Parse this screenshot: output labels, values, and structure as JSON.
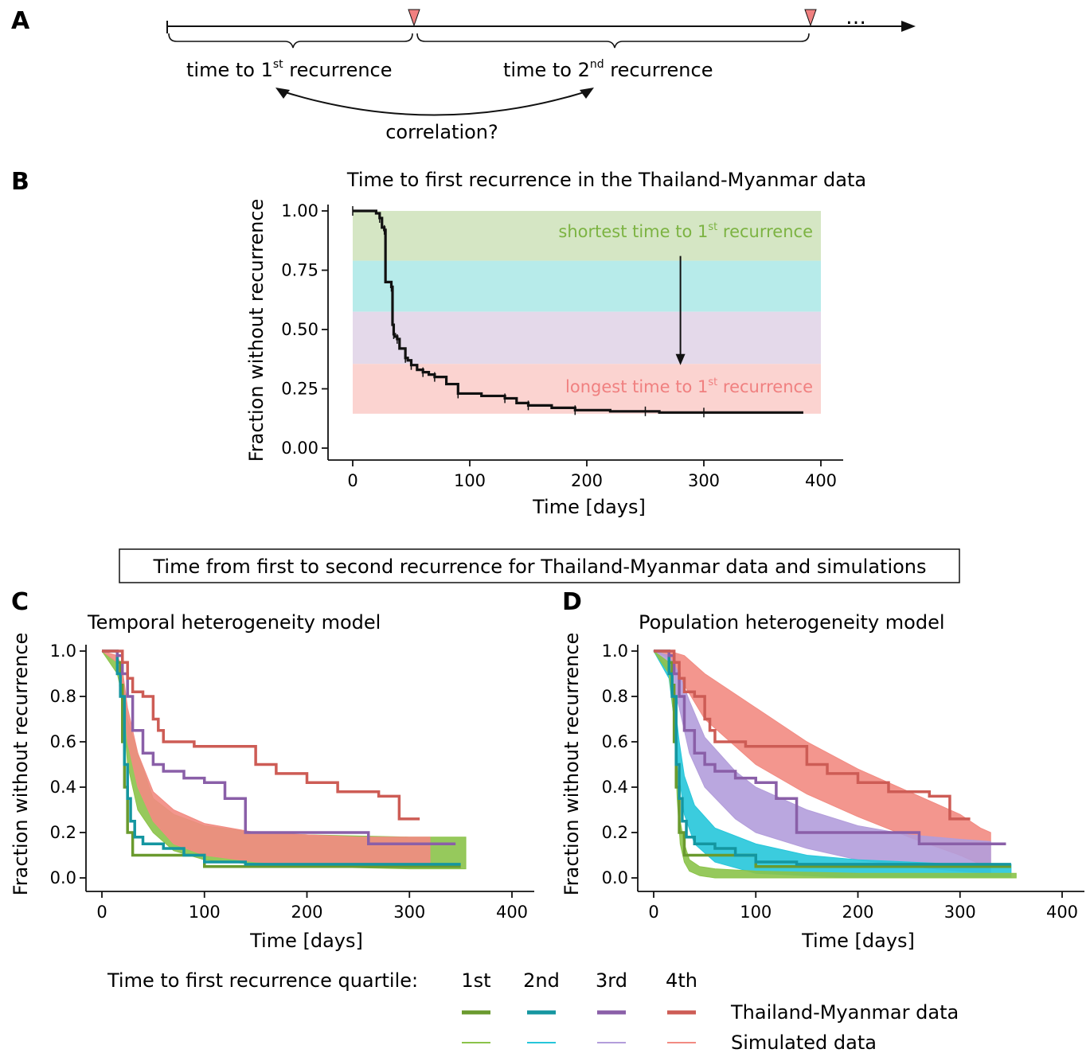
{
  "panel_letters": {
    "a": "A",
    "b": "B",
    "c": "C",
    "d": "D"
  },
  "panel_a": {
    "first_label_pre": "time to 1",
    "first_label_sup": "st",
    "first_label_post": " recurrence",
    "second_label_pre": "time to 2",
    "second_label_sup": "nd",
    "second_label_post": " recurrence",
    "correlation": "correlation?",
    "ellipsis": "…",
    "marker_color": "#f08080"
  },
  "section_title": "Time from first to second recurrence for Thailand-Myanmar data and simulations",
  "legend": {
    "quartile_title": "Time to first recurrence quartile:",
    "quartiles": [
      "1st",
      "2nd",
      "3rd",
      "4th"
    ],
    "colors_data": [
      "#6a9a2e",
      "#1496a0",
      "#8a5fa8",
      "#cd5c55"
    ],
    "colors_sim": [
      "#8bc34a",
      "#26c6da",
      "#b39ddb",
      "#f28b82"
    ],
    "data_label": "Thailand-Myanmar data",
    "sim_label": "Simulated data"
  },
  "chart_data": [
    {
      "id": "B",
      "type": "line",
      "title": "Time to first recurrence in the Thailand-Myanmar data",
      "xlabel": "Time [days]",
      "ylabel": "Fraction without recurrence",
      "xlim": [
        0,
        400
      ],
      "ylim": [
        0,
        1
      ],
      "xticks": [
        "0",
        "100",
        "200",
        "300",
        "400"
      ],
      "yticks": [
        "0.00",
        "0.25",
        "0.50",
        "0.75",
        "1.00"
      ],
      "bands": [
        {
          "y0": 0.79,
          "y1": 1.0,
          "color": "#d5e6c4"
        },
        {
          "y0": 0.575,
          "y1": 0.79,
          "color": "#b7ebea"
        },
        {
          "y0": 0.355,
          "y1": 0.575,
          "color": "#e4d9ea"
        },
        {
          "y0": 0.145,
          "y1": 0.355,
          "color": "#fbd3d0"
        }
      ],
      "band_x": [
        0,
        400
      ],
      "annotation_top": {
        "pre": "shortest time to 1",
        "sup": "st",
        "post": " recurrence",
        "color": "#7cb342"
      },
      "annotation_bottom": {
        "pre": "longest time to 1",
        "sup": "st",
        "post": " recurrence",
        "color": "#f08080"
      },
      "arrow": {
        "x": 280,
        "y_from": 0.81,
        "y_to": 0.35
      },
      "series": [
        {
          "color": "#111111",
          "x": [
            0,
            20,
            23,
            25,
            27,
            28,
            33,
            34,
            35,
            36,
            38,
            40,
            45,
            47,
            50,
            55,
            60,
            65,
            70,
            80,
            90,
            110,
            130,
            140,
            150,
            170,
            190,
            220,
            250,
            262,
            300,
            385
          ],
          "y": [
            1.0,
            0.99,
            0.97,
            0.93,
            0.92,
            0.7,
            0.68,
            0.52,
            0.48,
            0.47,
            0.46,
            0.42,
            0.38,
            0.37,
            0.35,
            0.33,
            0.32,
            0.31,
            0.3,
            0.27,
            0.23,
            0.22,
            0.21,
            0.19,
            0.18,
            0.17,
            0.16,
            0.155,
            0.155,
            0.15,
            0.15,
            0.15
          ]
        }
      ]
    },
    {
      "id": "C",
      "type": "line",
      "title": "Temporal heterogeneity model",
      "xlabel": "Time [days]",
      "ylabel": "Fraction without recurrence",
      "xlim": [
        0,
        400
      ],
      "ylim": [
        0,
        1
      ],
      "xticks": [
        "0",
        "100",
        "200",
        "300",
        "400"
      ],
      "yticks": [
        "0.0",
        "0.2",
        "0.4",
        "0.6",
        "0.8",
        "1.0"
      ],
      "series": [
        {
          "name": "1st",
          "kind": "data",
          "x": [
            0,
            15,
            18,
            20,
            22,
            25,
            30,
            40,
            60,
            90,
            100,
            120,
            150,
            200,
            250,
            350
          ],
          "y": [
            1.0,
            0.95,
            0.85,
            0.6,
            0.4,
            0.2,
            0.1,
            0.1,
            0.1,
            0.1,
            0.05,
            0.05,
            0.05,
            0.05,
            0.05,
            0.05
          ]
        },
        {
          "name": "2nd",
          "kind": "data",
          "x": [
            0,
            15,
            18,
            22,
            25,
            28,
            32,
            40,
            60,
            80,
            100,
            140,
            200,
            300,
            350
          ],
          "y": [
            1.0,
            0.9,
            0.8,
            0.5,
            0.35,
            0.25,
            0.18,
            0.15,
            0.13,
            0.1,
            0.07,
            0.06,
            0.06,
            0.06,
            0.06
          ]
        },
        {
          "name": "3rd",
          "kind": "data",
          "x": [
            0,
            15,
            20,
            25,
            30,
            40,
            50,
            60,
            80,
            100,
            120,
            140,
            200,
            260,
            300,
            345
          ],
          "y": [
            1.0,
            0.98,
            0.9,
            0.8,
            0.65,
            0.55,
            0.5,
            0.47,
            0.44,
            0.42,
            0.35,
            0.2,
            0.2,
            0.15,
            0.15,
            0.15
          ]
        },
        {
          "name": "4th",
          "kind": "data",
          "x": [
            0,
            20,
            25,
            30,
            40,
            50,
            55,
            60,
            90,
            120,
            150,
            170,
            200,
            230,
            270,
            290,
            310
          ],
          "y": [
            1.0,
            0.95,
            0.88,
            0.82,
            0.8,
            0.7,
            0.65,
            0.6,
            0.58,
            0.58,
            0.5,
            0.46,
            0.42,
            0.38,
            0.36,
            0.26,
            0.26
          ]
        }
      ],
      "sim_envelopes": [
        {
          "name": "1st",
          "x": [
            0,
            15,
            20,
            25,
            35,
            50,
            70,
            100,
            150,
            200,
            300,
            355
          ],
          "upper": [
            1.0,
            0.95,
            0.9,
            0.7,
            0.55,
            0.35,
            0.28,
            0.23,
            0.2,
            0.19,
            0.18,
            0.18
          ],
          "lower": [
            1.0,
            0.9,
            0.8,
            0.5,
            0.3,
            0.2,
            0.12,
            0.08,
            0.06,
            0.05,
            0.04,
            0.04
          ]
        },
        {
          "name": "4th",
          "x": [
            0,
            15,
            20,
            25,
            35,
            50,
            70,
            100,
            150,
            200,
            250,
            320
          ],
          "upper": [
            1.0,
            0.98,
            0.92,
            0.75,
            0.55,
            0.38,
            0.3,
            0.24,
            0.2,
            0.19,
            0.18,
            0.18
          ],
          "lower": [
            1.0,
            0.95,
            0.85,
            0.6,
            0.4,
            0.25,
            0.15,
            0.1,
            0.07,
            0.06,
            0.05,
            0.05
          ]
        }
      ]
    },
    {
      "id": "D",
      "type": "line",
      "title": "Population heterogeneity model",
      "xlabel": "Time [days]",
      "ylabel": "Fraction without recurrence",
      "xlim": [
        0,
        400
      ],
      "ylim": [
        0,
        1
      ],
      "xticks": [
        "0",
        "100",
        "200",
        "300",
        "400"
      ],
      "yticks": [
        "0.0",
        "0.2",
        "0.4",
        "0.6",
        "0.8",
        "1.0"
      ],
      "series": [
        {
          "name": "1st",
          "kind": "data",
          "x": [
            0,
            15,
            18,
            20,
            22,
            25,
            30,
            40,
            60,
            90,
            100,
            120,
            150,
            200,
            250,
            350
          ],
          "y": [
            1.0,
            0.95,
            0.85,
            0.6,
            0.4,
            0.2,
            0.1,
            0.1,
            0.1,
            0.1,
            0.05,
            0.05,
            0.05,
            0.05,
            0.05,
            0.05
          ]
        },
        {
          "name": "2nd",
          "kind": "data",
          "x": [
            0,
            15,
            18,
            22,
            25,
            28,
            32,
            40,
            60,
            80,
            100,
            140,
            200,
            300,
            350
          ],
          "y": [
            1.0,
            0.9,
            0.8,
            0.5,
            0.35,
            0.25,
            0.18,
            0.15,
            0.13,
            0.1,
            0.07,
            0.06,
            0.06,
            0.06,
            0.06
          ]
        },
        {
          "name": "3rd",
          "kind": "data",
          "x": [
            0,
            15,
            20,
            25,
            30,
            40,
            50,
            60,
            80,
            100,
            120,
            140,
            200,
            260,
            300,
            345
          ],
          "y": [
            1.0,
            0.98,
            0.9,
            0.8,
            0.65,
            0.55,
            0.5,
            0.47,
            0.44,
            0.42,
            0.35,
            0.2,
            0.2,
            0.15,
            0.15,
            0.15
          ]
        },
        {
          "name": "4th",
          "kind": "data",
          "x": [
            0,
            20,
            25,
            30,
            40,
            50,
            55,
            60,
            90,
            120,
            150,
            170,
            200,
            230,
            270,
            290,
            310
          ],
          "y": [
            1.0,
            0.95,
            0.88,
            0.82,
            0.8,
            0.7,
            0.65,
            0.6,
            0.58,
            0.58,
            0.5,
            0.46,
            0.42,
            0.38,
            0.36,
            0.26,
            0.26
          ]
        }
      ],
      "sim_envelopes": [
        {
          "name": "4th",
          "x": [
            0,
            15,
            30,
            50,
            100,
            150,
            200,
            250,
            300,
            320,
            330
          ],
          "upper": [
            1.0,
            1.0,
            0.98,
            0.9,
            0.75,
            0.6,
            0.48,
            0.38,
            0.28,
            0.22,
            0.2
          ],
          "lower": [
            1.0,
            0.97,
            0.85,
            0.7,
            0.5,
            0.37,
            0.27,
            0.18,
            0.1,
            0.06,
            0.05
          ]
        },
        {
          "name": "3rd",
          "x": [
            0,
            15,
            25,
            35,
            50,
            80,
            100,
            150,
            200,
            250,
            300,
            330
          ],
          "upper": [
            1.0,
            0.98,
            0.9,
            0.78,
            0.62,
            0.47,
            0.4,
            0.3,
            0.23,
            0.19,
            0.17,
            0.16
          ],
          "lower": [
            1.0,
            0.92,
            0.75,
            0.55,
            0.4,
            0.26,
            0.2,
            0.13,
            0.08,
            0.05,
            0.03,
            0.02
          ]
        },
        {
          "name": "2nd",
          "x": [
            0,
            15,
            20,
            25,
            30,
            40,
            60,
            100,
            150,
            200,
            250,
            300,
            350
          ],
          "upper": [
            1.0,
            0.92,
            0.8,
            0.6,
            0.45,
            0.32,
            0.22,
            0.15,
            0.1,
            0.08,
            0.07,
            0.06,
            0.06
          ],
          "lower": [
            1.0,
            0.88,
            0.7,
            0.45,
            0.28,
            0.15,
            0.07,
            0.02,
            0.01,
            0.0,
            0.0,
            0.0,
            0.0
          ]
        },
        {
          "name": "1st",
          "x": [
            0,
            15,
            20,
            23,
            26,
            30,
            35,
            45,
            60,
            100,
            200,
            300,
            355
          ],
          "upper": [
            1.0,
            0.95,
            0.8,
            0.5,
            0.25,
            0.15,
            0.08,
            0.05,
            0.04,
            0.03,
            0.02,
            0.02,
            0.02
          ],
          "lower": [
            1.0,
            0.9,
            0.7,
            0.35,
            0.15,
            0.07,
            0.03,
            0.01,
            0.0,
            0.0,
            0.0,
            0.0,
            0.0
          ]
        }
      ]
    }
  ]
}
